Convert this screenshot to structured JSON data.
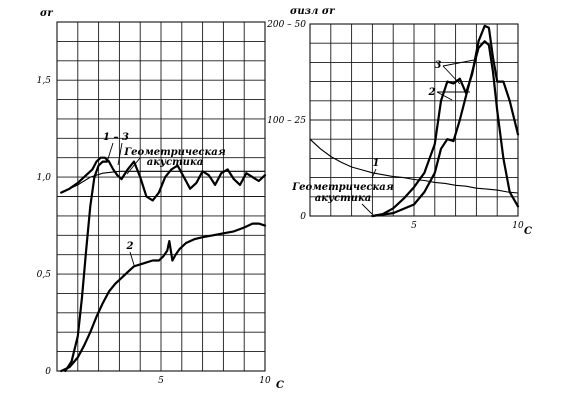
{
  "chart_data": [
    {
      "type": "line",
      "title": "",
      "ylabel": "σr",
      "xlabel": "C",
      "xlim": [
        0,
        10
      ],
      "ylim": [
        0,
        1.8
      ],
      "xticks": [
        "5",
        "10"
      ],
      "yticks": [
        "0",
        "0,5",
        "1,0",
        "1,5"
      ],
      "grid": true,
      "annotation": {
        "line1": "Геометрическая",
        "line2": "акустика"
      },
      "series": [
        {
          "name": "1 – 3",
          "x": [
            0.2,
            0.6,
            1.0,
            1.4,
            1.7,
            1.9,
            2.1,
            2.3,
            2.5,
            2.7,
            2.9,
            3.1,
            3.4,
            3.7,
            4.0,
            4.3,
            4.6,
            4.9,
            5.2,
            5.5,
            5.8,
            6.1,
            6.4,
            6.7,
            7.0,
            7.3,
            7.6,
            7.9,
            8.2,
            8.5,
            8.8,
            9.1,
            9.4,
            9.7,
            10.0
          ],
          "y": [
            0.92,
            0.94,
            0.97,
            1.01,
            1.04,
            1.08,
            1.1,
            1.1,
            1.08,
            1.04,
            1.01,
            0.99,
            1.04,
            1.08,
            1.0,
            0.9,
            0.88,
            0.92,
            1.0,
            1.04,
            1.06,
            1.0,
            0.94,
            0.97,
            1.03,
            1.01,
            0.96,
            1.02,
            1.04,
            0.99,
            0.96,
            1.02,
            1.0,
            0.98,
            1.01
          ]
        },
        {
          "name": "Геометрическая акустика",
          "x": [
            0.2,
            1.0,
            1.6,
            2.2,
            3.0,
            4.0,
            5.0,
            6.0,
            7.0,
            8.0,
            9.0,
            10.0
          ],
          "y": [
            0.92,
            0.96,
            1.0,
            1.02,
            1.03,
            1.03,
            1.03,
            1.03,
            1.03,
            1.03,
            1.03,
            1.03
          ]
        },
        {
          "name": "",
          "x": [
            0.4,
            0.7,
            1.0,
            1.2,
            1.4,
            1.6,
            1.8,
            2.0,
            2.2,
            2.4
          ],
          "y": [
            0.0,
            0.05,
            0.18,
            0.38,
            0.62,
            0.85,
            1.0,
            1.06,
            1.08,
            1.08
          ]
        },
        {
          "name": "2",
          "x": [
            0.2,
            0.6,
            1.0,
            1.3,
            1.6,
            1.9,
            2.2,
            2.5,
            2.8,
            3.1,
            3.4,
            3.7,
            4.0,
            4.3,
            4.6,
            4.9,
            5.1,
            5.3,
            5.4,
            5.55,
            5.7,
            5.9,
            6.2,
            6.6,
            7.0,
            7.5,
            8.0,
            8.5,
            9.0,
            9.4,
            9.7,
            10.0
          ],
          "y": [
            0.0,
            0.02,
            0.07,
            0.13,
            0.2,
            0.28,
            0.35,
            0.41,
            0.45,
            0.48,
            0.51,
            0.54,
            0.55,
            0.56,
            0.57,
            0.57,
            0.59,
            0.62,
            0.67,
            0.57,
            0.6,
            0.63,
            0.66,
            0.68,
            0.69,
            0.7,
            0.71,
            0.72,
            0.74,
            0.76,
            0.76,
            0.75
          ]
        }
      ]
    },
    {
      "type": "line",
      "title": "",
      "ylabel": "σизл  σr",
      "xlabel": "C",
      "xlim": [
        0,
        10
      ],
      "ylim": [
        0,
        200
      ],
      "ylim_secondary": [
        0,
        50
      ],
      "xticks": [
        "5",
        "10"
      ],
      "yticks": [
        "0",
        "100 – 25",
        "200 – 50"
      ],
      "grid": true,
      "annotation": {
        "line1": "Геометрическая",
        "line2": "акустика"
      },
      "series": [
        {
          "name": "1",
          "x": [
            0.0,
            0.5,
            1.0,
            1.5,
            2.0,
            2.5,
            3.0,
            3.5,
            4.0,
            4.5,
            5.0,
            5.5,
            6.0,
            6.5,
            7.0,
            7.5,
            8.0,
            8.5,
            9.0,
            9.5,
            10.0
          ],
          "y": [
            80,
            70,
            62,
            56,
            51,
            48,
            45,
            43,
            41,
            40,
            38,
            37,
            35,
            34,
            32,
            31,
            29,
            28,
            27,
            25,
            24
          ]
        },
        {
          "name": "3",
          "x": [
            3.0,
            3.5,
            4.0,
            4.5,
            5.0,
            5.5,
            6.0,
            6.3,
            6.6,
            6.9,
            7.2,
            7.5,
            7.8,
            8.1,
            8.4,
            8.6,
            8.8,
            9.0,
            9.3,
            9.6,
            10.0
          ],
          "y": [
            0,
            2,
            8,
            18,
            30,
            45,
            75,
            120,
            140,
            138,
            143,
            128,
            148,
            182,
            198,
            196,
            165,
            140,
            140,
            120,
            85
          ]
        },
        {
          "name": "2",
          "x": [
            3.0,
            4.0,
            5.0,
            5.5,
            6.0,
            6.3,
            6.6,
            6.9,
            7.2,
            7.5,
            7.8,
            8.1,
            8.4,
            8.6,
            8.8,
            9.0,
            9.3,
            9.6,
            10.0
          ],
          "y": [
            0,
            3,
            12,
            25,
            45,
            70,
            80,
            78,
            100,
            125,
            150,
            175,
            182,
            178,
            150,
            110,
            60,
            25,
            10
          ]
        }
      ]
    }
  ]
}
